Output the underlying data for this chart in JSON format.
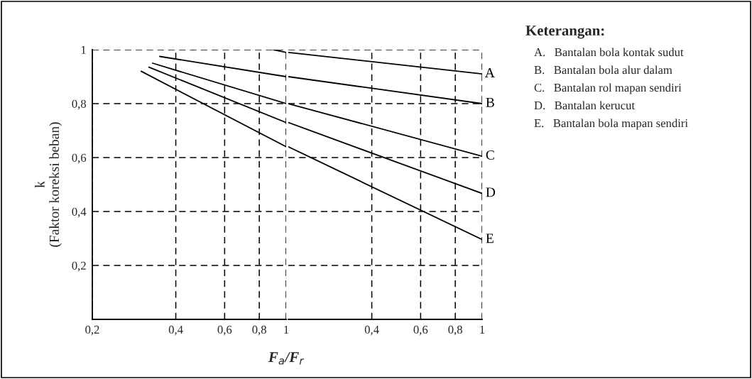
{
  "chart_data": [
    {
      "type": "line",
      "ylabel": "k\n(Faktor koreksi beban)",
      "xlabel": "F$_{a}$/F$_{r}$",
      "series": [
        {
          "color": "#000000",
          "x": [
            0.9,
            1
          ],
          "values": [
            1.0,
            0.99
          ]
        },
        {
          "color": "#000000",
          "x": [
            0.35,
            1
          ],
          "values": [
            0.975,
            0.9
          ]
        },
        {
          "color": "#000000",
          "x": [
            0.33,
            1
          ],
          "values": [
            0.95,
            0.8
          ]
        },
        {
          "color": "#000000",
          "x": [
            0.32,
            1
          ],
          "values": [
            0.935,
            0.73
          ]
        },
        {
          "color": "#000000",
          "x": [
            0.3,
            1
          ],
          "values": [
            0.92,
            0.64
          ]
        }
      ],
      "xlim": [
        0.2,
        1
      ],
      "xticks": [
        {
          "value": 0.2,
          "label": "0,2"
        },
        {
          "value": 0.4,
          "label": "0,4"
        },
        {
          "value": 0.6,
          "label": "0,6"
        },
        {
          "value": 0.8,
          "label": "0,8"
        },
        1
      ],
      "ylim": [
        0,
        1
      ],
      "yticks": [
        {
          "value": 0.2,
          "label": "0,2"
        },
        {
          "value": 0.4,
          "label": "0,4"
        },
        {
          "value": 0.6,
          "label": "0,6"
        },
        {
          "value": 0.8,
          "label": "0,8"
        },
        1
      ],
      "log": "x",
      "grid": true,
      "line_style": "solid",
      "marker": "none",
      "legend": false,
      "annotations": [
        "Keterangan:",
        "A.   Bantalan bola kontak sudut",
        "B.   Bantalan bola alur dalam",
        "C.   Bantalan rol mapan sendiri",
        "D.   Bantalan kerucut",
        "E.   Bantalan bola mapan sendiri"
      ]
    },
    {
      "type": "line",
      "series": [
        {
          "name": "A",
          "color": "#000000",
          "x": [
            0.2,
            1
          ],
          "values": [
            0.99,
            0.91
          ]
        },
        {
          "name": "B",
          "color": "#000000",
          "x": [
            0.2,
            1
          ],
          "values": [
            0.9,
            0.8
          ]
        },
        {
          "name": "C",
          "color": "#000000",
          "x": [
            0.2,
            1
          ],
          "values": [
            0.8,
            0.605
          ]
        },
        {
          "name": "D",
          "color": "#000000",
          "x": [
            0.2,
            1
          ],
          "values": [
            0.73,
            0.467
          ]
        },
        {
          "name": "E",
          "color": "#000000",
          "x": [
            0.2,
            1
          ],
          "values": [
            0.64,
            0.296
          ]
        }
      ],
      "xlim": [
        0.2,
        1
      ],
      "xticks": [
        {
          "value": 0.4,
          "label": "0,4"
        },
        {
          "value": 0.6,
          "label": "0,6"
        },
        {
          "value": 0.8,
          "label": "0,8"
        },
        1
      ],
      "ylim": [
        0,
        1
      ],
      "yticks": [
        0.2,
        0.4,
        0.6,
        0.8,
        1
      ],
      "tick_labels": "x",
      "log": "x",
      "grid": true,
      "line_style": "solid",
      "marker": "none",
      "legend": false
    }
  ]
}
